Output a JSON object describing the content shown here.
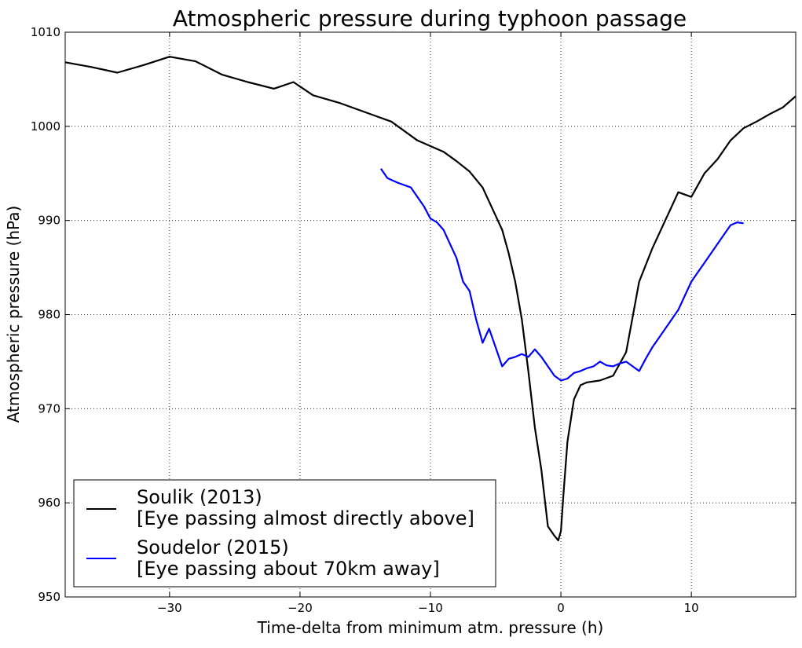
{
  "chart_data": {
    "type": "line",
    "title": "Atmospheric pressure during typhoon passage",
    "xlabel": "Time-delta from minimum atm. pressure (h)",
    "ylabel": "Atmospheric pressure (hPa)",
    "xlim": [
      -38,
      18
    ],
    "ylim": [
      950,
      1010
    ],
    "xticks": [
      -30,
      -20,
      -10,
      0,
      10
    ],
    "xtick_labels": [
      "−30",
      "−20",
      "−10",
      "0",
      "10"
    ],
    "yticks": [
      950,
      960,
      970,
      980,
      990,
      1000,
      1010
    ],
    "ytick_labels": [
      "950",
      "960",
      "970",
      "980",
      "990",
      "1000",
      "1010"
    ],
    "grid": true,
    "legend_position": "lower-left",
    "series": [
      {
        "name": "Soulik (2013)",
        "name_line2": "[Eye passing almost directly above]",
        "color": "#000000",
        "x": [
          -38,
          -36,
          -34,
          -32,
          -30,
          -28,
          -26,
          -24,
          -22,
          -20.5,
          -19,
          -17,
          -15,
          -13,
          -11,
          -9,
          -8,
          -7,
          -6,
          -5,
          -4.5,
          -4,
          -3.5,
          -3,
          -2.5,
          -2,
          -1.5,
          -1,
          -0.5,
          -0.2,
          0,
          0.2,
          0.5,
          1,
          1.5,
          2,
          3,
          4,
          5,
          6,
          7,
          8,
          9,
          10,
          11,
          12,
          13,
          14,
          15,
          16,
          17,
          18
        ],
        "y": [
          1006.8,
          1006.3,
          1005.7,
          1006.5,
          1007.4,
          1006.9,
          1005.5,
          1004.7,
          1004.0,
          1004.7,
          1003.3,
          1002.5,
          1001.5,
          1000.5,
          998.5,
          997.3,
          996.3,
          995.2,
          993.5,
          990.5,
          989.0,
          986.5,
          983.5,
          979.5,
          974.0,
          968.0,
          963.5,
          957.5,
          956.5,
          956.0,
          957.0,
          961.0,
          966.5,
          971.0,
          972.5,
          972.8,
          973.0,
          973.5,
          976.0,
          983.5,
          987.0,
          990.0,
          993.0,
          992.5,
          995.0,
          996.5,
          998.5,
          999.8,
          1000.5,
          1001.3,
          1002.0,
          1003.2
        ]
      },
      {
        "name": "Soudelor (2015)",
        "name_line2": "[Eye passing about 70km away]",
        "color": "#0000ff",
        "x": [
          -13.8,
          -13.3,
          -12.5,
          -11.5,
          -11.0,
          -10.5,
          -10.0,
          -9.5,
          -9.0,
          -8.5,
          -8.0,
          -7.5,
          -7.0,
          -6.5,
          -6.0,
          -5.5,
          -5.0,
          -4.5,
          -4.0,
          -3.5,
          -3.0,
          -2.5,
          -2.0,
          -1.5,
          -1.0,
          -0.5,
          0.0,
          0.5,
          1.0,
          1.5,
          2.0,
          2.5,
          3.0,
          3.5,
          4.0,
          4.5,
          5.0,
          5.5,
          6.0,
          6.5,
          7.0,
          7.5,
          8.0,
          8.5,
          9.0,
          9.5,
          10.0,
          10.5,
          11.0,
          11.5,
          12.0,
          12.5,
          13.0,
          13.5,
          14.0
        ],
        "y": [
          995.5,
          994.5,
          994.0,
          993.5,
          992.5,
          991.5,
          990.2,
          989.8,
          989.0,
          987.5,
          986.0,
          983.5,
          982.5,
          979.5,
          977.0,
          978.5,
          976.5,
          974.5,
          975.3,
          975.5,
          975.8,
          975.5,
          976.3,
          975.5,
          974.5,
          973.5,
          973.0,
          973.2,
          973.8,
          974.0,
          974.3,
          974.5,
          975.0,
          974.6,
          974.5,
          974.8,
          975.0,
          974.5,
          974.0,
          975.3,
          976.5,
          977.5,
          978.5,
          979.5,
          980.5,
          982.0,
          983.5,
          984.5,
          985.5,
          986.5,
          987.5,
          988.5,
          989.5,
          989.8,
          989.7
        ]
      }
    ]
  }
}
